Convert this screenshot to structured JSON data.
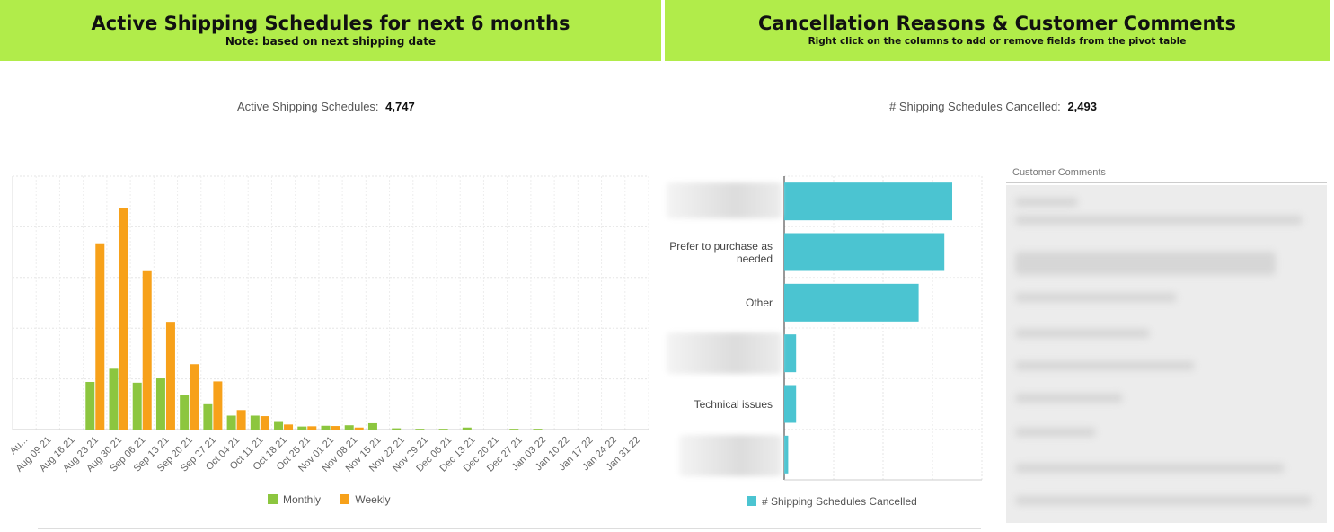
{
  "header_left": {
    "title": "Active Shipping Schedules for next 6 months",
    "subtitle": "Note: based on next shipping date"
  },
  "header_right": {
    "title": "Cancellation Reasons & Customer Comments",
    "subtitle": "Right click on the columns to add or remove fields from the pivot table"
  },
  "kpi_left": {
    "label": "Active Shipping Schedules:",
    "value": "4,747"
  },
  "kpi_right": {
    "label": "# Shipping Schedules Cancelled:",
    "value": "2,493"
  },
  "colors": {
    "header_bg": "#b1ec4a",
    "monthly": "#8cc63f",
    "weekly": "#f7a11a",
    "cancelled": "#4bc4d1"
  },
  "chart_data": [
    {
      "type": "bar",
      "title": "",
      "categories": [
        "Au...",
        "Aug 09 21",
        "Aug 16 21",
        "Aug 23 21",
        "Aug 30 21",
        "Sep 06 21",
        "Sep 13 21",
        "Sep 20 21",
        "Sep 27 21",
        "Oct 04 21",
        "Oct 11 21",
        "Oct 18 21",
        "Oct 25 21",
        "Nov 01 21",
        "Nov 08 21",
        "Nov 15 21",
        "Nov 22 21",
        "Nov 29 21",
        "Dec 06 21",
        "Dec 13 21",
        "Dec 20 21",
        "Dec 27 21",
        "Jan 03 22",
        "Jan 10 22",
        "Jan 17 22",
        "Jan 24 22",
        "Jan 31 22"
      ],
      "series": [
        {
          "name": "Monthly",
          "values": [
            0,
            0,
            0,
            188,
            240,
            185,
            202,
            138,
            100,
            55,
            55,
            30,
            12,
            15,
            17,
            25,
            5,
            3,
            3,
            8,
            0,
            3,
            3,
            0,
            0,
            0,
            0
          ]
        },
        {
          "name": "Weekly",
          "values": [
            0,
            0,
            0,
            735,
            875,
            625,
            425,
            258,
            190,
            77,
            53,
            20,
            13,
            14,
            8,
            0,
            0,
            0,
            0,
            0,
            0,
            0,
            0,
            0,
            0,
            0,
            0
          ]
        }
      ],
      "ylim": [
        0,
        1000
      ],
      "grid": true,
      "legend": "bottom-center",
      "xlabel": "",
      "ylabel": ""
    },
    {
      "type": "bar",
      "orientation": "horizontal",
      "title": "",
      "categories": [
        "",
        "Prefer to purchase as needed",
        "Other",
        "",
        "Technical issues",
        ""
      ],
      "series": [
        {
          "name": "# Shipping Schedules Cancelled",
          "values": [
            850,
            810,
            680,
            60,
            60,
            20
          ]
        }
      ],
      "xlim": [
        0,
        1000
      ],
      "grid": true,
      "legend": "bottom-center"
    }
  ],
  "comments": {
    "title": "Customer Comments"
  }
}
